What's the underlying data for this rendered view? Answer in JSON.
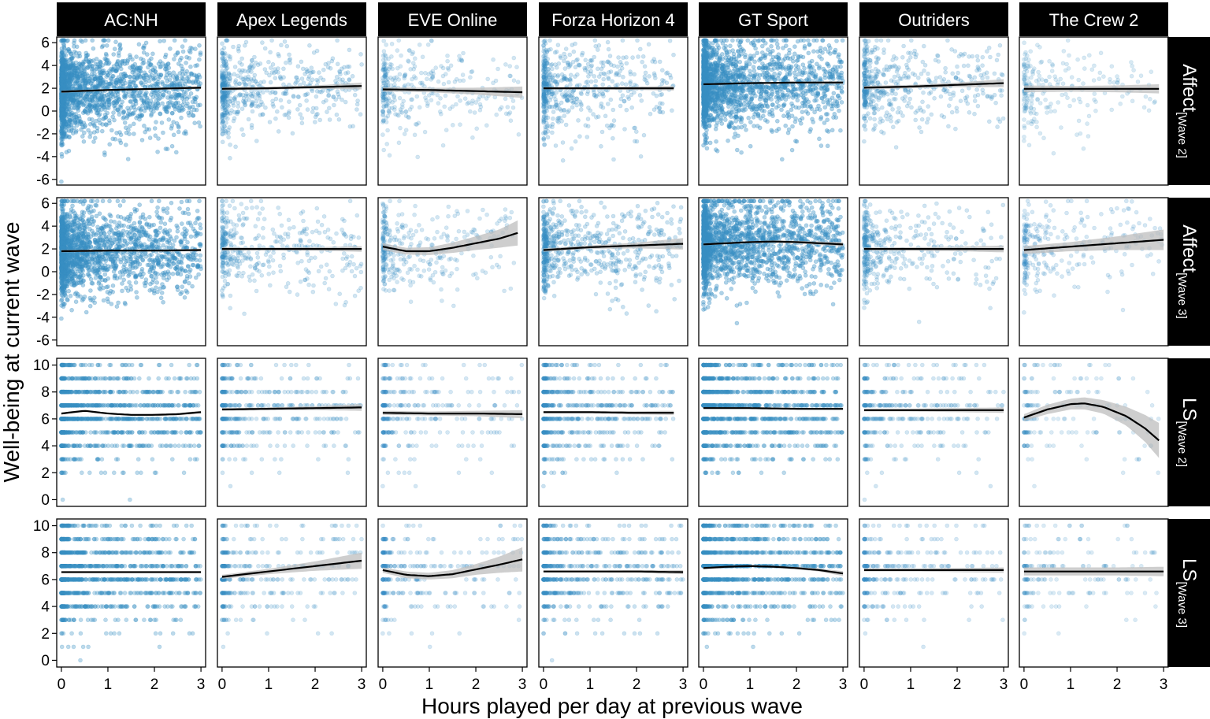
{
  "chart_data": {
    "type": "scatter",
    "xlabel": "Hours played per day at previous wave",
    "ylabel": "Well-being at current wave",
    "columns": [
      "AC:NH",
      "Apex Legends",
      "EVE Online",
      "Forza Horizon 4",
      "GT Sport",
      "Outriders",
      "The Crew 2"
    ],
    "rows": [
      {
        "main": "Affect",
        "sub": "[Wave 2]",
        "ylim": [
          -6.5,
          6.5
        ],
        "yticks": [
          -6,
          -4,
          -2,
          0,
          2,
          4,
          6
        ],
        "continuous": true
      },
      {
        "main": "Affect",
        "sub": "[Wave 3]",
        "ylim": [
          -6.5,
          6.5
        ],
        "yticks": [
          -6,
          -4,
          -2,
          0,
          2,
          4,
          6
        ],
        "continuous": true
      },
      {
        "main": "LS",
        "sub": "[Wave 2]",
        "ylim": [
          -0.5,
          10.5
        ],
        "yticks": [
          0,
          2,
          4,
          6,
          8,
          10
        ],
        "continuous": false
      },
      {
        "main": "LS",
        "sub": "[Wave 3]",
        "ylim": [
          -0.5,
          10.5
        ],
        "yticks": [
          0,
          2,
          4,
          6,
          8,
          10
        ],
        "continuous": false
      }
    ],
    "xlim": [
      -0.1,
      3.1
    ],
    "xticks": [
      0,
      1,
      2,
      3
    ],
    "point_color": "#3a8fc4",
    "line_color": "#000000",
    "band_color": "#bdbdbd",
    "strip_color": "#000000",
    "density": [
      [
        2.2,
        1.0,
        0.7,
        1.0,
        2.2,
        0.9,
        0.5
      ],
      [
        2.2,
        0.8,
        0.7,
        1.1,
        2.2,
        0.8,
        0.6
      ],
      [
        1.6,
        0.8,
        0.6,
        1.0,
        1.6,
        0.7,
        0.4
      ],
      [
        1.6,
        0.7,
        0.6,
        1.0,
        1.6,
        0.6,
        0.4
      ]
    ],
    "panels": [
      [
        {
          "fit_x": [
            0,
            1,
            2,
            3
          ],
          "fit_y": [
            1.7,
            1.85,
            1.95,
            2.05
          ],
          "se": [
            0.1,
            0.08,
            0.08,
            0.12
          ]
        },
        {
          "fit_x": [
            0,
            1,
            2,
            3
          ],
          "fit_y": [
            1.95,
            2.0,
            2.1,
            2.2
          ],
          "se": [
            0.15,
            0.12,
            0.15,
            0.3
          ]
        },
        {
          "fit_x": [
            0,
            1,
            2,
            3
          ],
          "fit_y": [
            1.9,
            1.85,
            1.75,
            1.65
          ],
          "se": [
            0.2,
            0.2,
            0.3,
            0.5
          ]
        },
        {
          "fit_x": [
            0,
            1,
            2,
            2.8
          ],
          "fit_y": [
            2.0,
            2.0,
            2.0,
            2.0
          ],
          "se": [
            0.1,
            0.1,
            0.15,
            0.2
          ]
        },
        {
          "fit_x": [
            0,
            1,
            2,
            3
          ],
          "fit_y": [
            2.35,
            2.45,
            2.5,
            2.5
          ],
          "se": [
            0.08,
            0.06,
            0.08,
            0.12
          ]
        },
        {
          "fit_x": [
            0,
            1,
            2,
            3
          ],
          "fit_y": [
            2.05,
            2.15,
            2.3,
            2.45
          ],
          "se": [
            0.15,
            0.15,
            0.2,
            0.35
          ]
        },
        {
          "fit_x": [
            0,
            1,
            2,
            2.9
          ],
          "fit_y": [
            1.95,
            1.95,
            1.95,
            1.95
          ],
          "se": [
            0.3,
            0.25,
            0.3,
            0.4
          ]
        }
      ],
      [
        {
          "fit_x": [
            0,
            1,
            2,
            3
          ],
          "fit_y": [
            1.8,
            1.85,
            1.85,
            1.9
          ],
          "se": [
            0.1,
            0.08,
            0.08,
            0.12
          ]
        },
        {
          "fit_x": [
            0,
            1,
            2,
            3
          ],
          "fit_y": [
            2.0,
            2.0,
            2.0,
            2.0
          ],
          "se": [
            0.15,
            0.12,
            0.15,
            0.25
          ]
        },
        {
          "fit_x": [
            0,
            0.5,
            1,
            1.5,
            2,
            2.5,
            2.9
          ],
          "fit_y": [
            2.2,
            1.8,
            1.8,
            2.1,
            2.5,
            2.9,
            3.4
          ],
          "se": [
            0.3,
            0.3,
            0.35,
            0.45,
            0.6,
            0.8,
            1.1
          ]
        },
        {
          "fit_x": [
            0,
            1,
            2,
            3
          ],
          "fit_y": [
            1.9,
            2.15,
            2.3,
            2.45
          ],
          "se": [
            0.15,
            0.15,
            0.25,
            0.5
          ]
        },
        {
          "fit_x": [
            0,
            0.5,
            1,
            1.5,
            2,
            2.5,
            3
          ],
          "fit_y": [
            2.4,
            2.5,
            2.6,
            2.65,
            2.6,
            2.5,
            2.4
          ],
          "se": [
            0.1,
            0.08,
            0.08,
            0.1,
            0.12,
            0.15,
            0.2
          ]
        },
        {
          "fit_x": [
            0,
            1,
            2,
            3
          ],
          "fit_y": [
            2.0,
            2.0,
            2.0,
            2.0
          ],
          "se": [
            0.12,
            0.15,
            0.2,
            0.3
          ]
        },
        {
          "fit_x": [
            0,
            1,
            2,
            3
          ],
          "fit_y": [
            1.9,
            2.2,
            2.5,
            2.8
          ],
          "se": [
            0.35,
            0.4,
            0.6,
            0.9
          ]
        }
      ],
      [
        {
          "fit_x": [
            0,
            0.5,
            1,
            1.5,
            2,
            2.5,
            3
          ],
          "fit_y": [
            6.4,
            6.6,
            6.4,
            6.3,
            6.3,
            6.35,
            6.5
          ],
          "se": [
            0.08,
            0.06,
            0.06,
            0.06,
            0.07,
            0.08,
            0.1
          ]
        },
        {
          "fit_x": [
            0,
            1,
            2,
            3
          ],
          "fit_y": [
            6.7,
            6.75,
            6.8,
            6.85
          ],
          "se": [
            0.1,
            0.1,
            0.15,
            0.25
          ]
        },
        {
          "fit_x": [
            0,
            1,
            2,
            3
          ],
          "fit_y": [
            6.45,
            6.4,
            6.4,
            6.35
          ],
          "se": [
            0.15,
            0.15,
            0.2,
            0.3
          ]
        },
        {
          "fit_x": [
            0,
            1,
            2,
            2.8
          ],
          "fit_y": [
            6.5,
            6.5,
            6.45,
            6.45
          ],
          "se": [
            0.08,
            0.08,
            0.12,
            0.15
          ]
        },
        {
          "fit_x": [
            0,
            1,
            2,
            3
          ],
          "fit_y": [
            6.8,
            6.8,
            6.75,
            6.75
          ],
          "se": [
            0.05,
            0.05,
            0.05,
            0.08
          ]
        },
        {
          "fit_x": [
            0,
            1,
            2,
            3
          ],
          "fit_y": [
            6.65,
            6.65,
            6.65,
            6.65
          ],
          "se": [
            0.1,
            0.1,
            0.15,
            0.2
          ]
        },
        {
          "fit_x": [
            0,
            0.5,
            1,
            1.3,
            1.7,
            2.2,
            2.6,
            2.9
          ],
          "fit_y": [
            6.1,
            6.7,
            7.1,
            7.15,
            6.9,
            6.2,
            5.3,
            4.4
          ],
          "se": [
            0.25,
            0.35,
            0.4,
            0.45,
            0.5,
            0.7,
            1.0,
            1.3
          ]
        }
      ],
      [
        {
          "fit_x": [
            0,
            1,
            2,
            3
          ],
          "fit_y": [
            6.55,
            6.55,
            6.55,
            6.55
          ],
          "se": [
            0.05,
            0.05,
            0.05,
            0.08
          ]
        },
        {
          "fit_x": [
            0,
            1,
            2,
            3
          ],
          "fit_y": [
            6.2,
            6.6,
            7.0,
            7.4
          ],
          "se": [
            0.15,
            0.2,
            0.35,
            0.6
          ]
        },
        {
          "fit_x": [
            0,
            0.5,
            1,
            1.5,
            2,
            2.5,
            3
          ],
          "fit_y": [
            6.7,
            6.35,
            6.25,
            6.4,
            6.75,
            7.1,
            7.5
          ],
          "se": [
            0.2,
            0.25,
            0.25,
            0.3,
            0.4,
            0.6,
            0.9
          ]
        },
        {
          "fit_x": [
            0,
            1,
            2,
            3
          ],
          "fit_y": [
            6.6,
            6.6,
            6.6,
            6.55
          ],
          "se": [
            0.08,
            0.08,
            0.1,
            0.15
          ]
        },
        {
          "fit_x": [
            0,
            0.5,
            1,
            1.5,
            2,
            2.5,
            3
          ],
          "fit_y": [
            6.85,
            6.95,
            7.0,
            6.95,
            6.85,
            6.7,
            6.45
          ],
          "se": [
            0.06,
            0.05,
            0.05,
            0.06,
            0.08,
            0.12,
            0.18
          ]
        },
        {
          "fit_x": [
            0,
            1,
            2,
            3
          ],
          "fit_y": [
            6.7,
            6.7,
            6.7,
            6.7
          ],
          "se": [
            0.1,
            0.1,
            0.15,
            0.2
          ]
        },
        {
          "fit_x": [
            0,
            1,
            2,
            3
          ],
          "fit_y": [
            6.6,
            6.6,
            6.6,
            6.6
          ],
          "se": [
            0.3,
            0.3,
            0.3,
            0.35
          ]
        }
      ]
    ]
  }
}
